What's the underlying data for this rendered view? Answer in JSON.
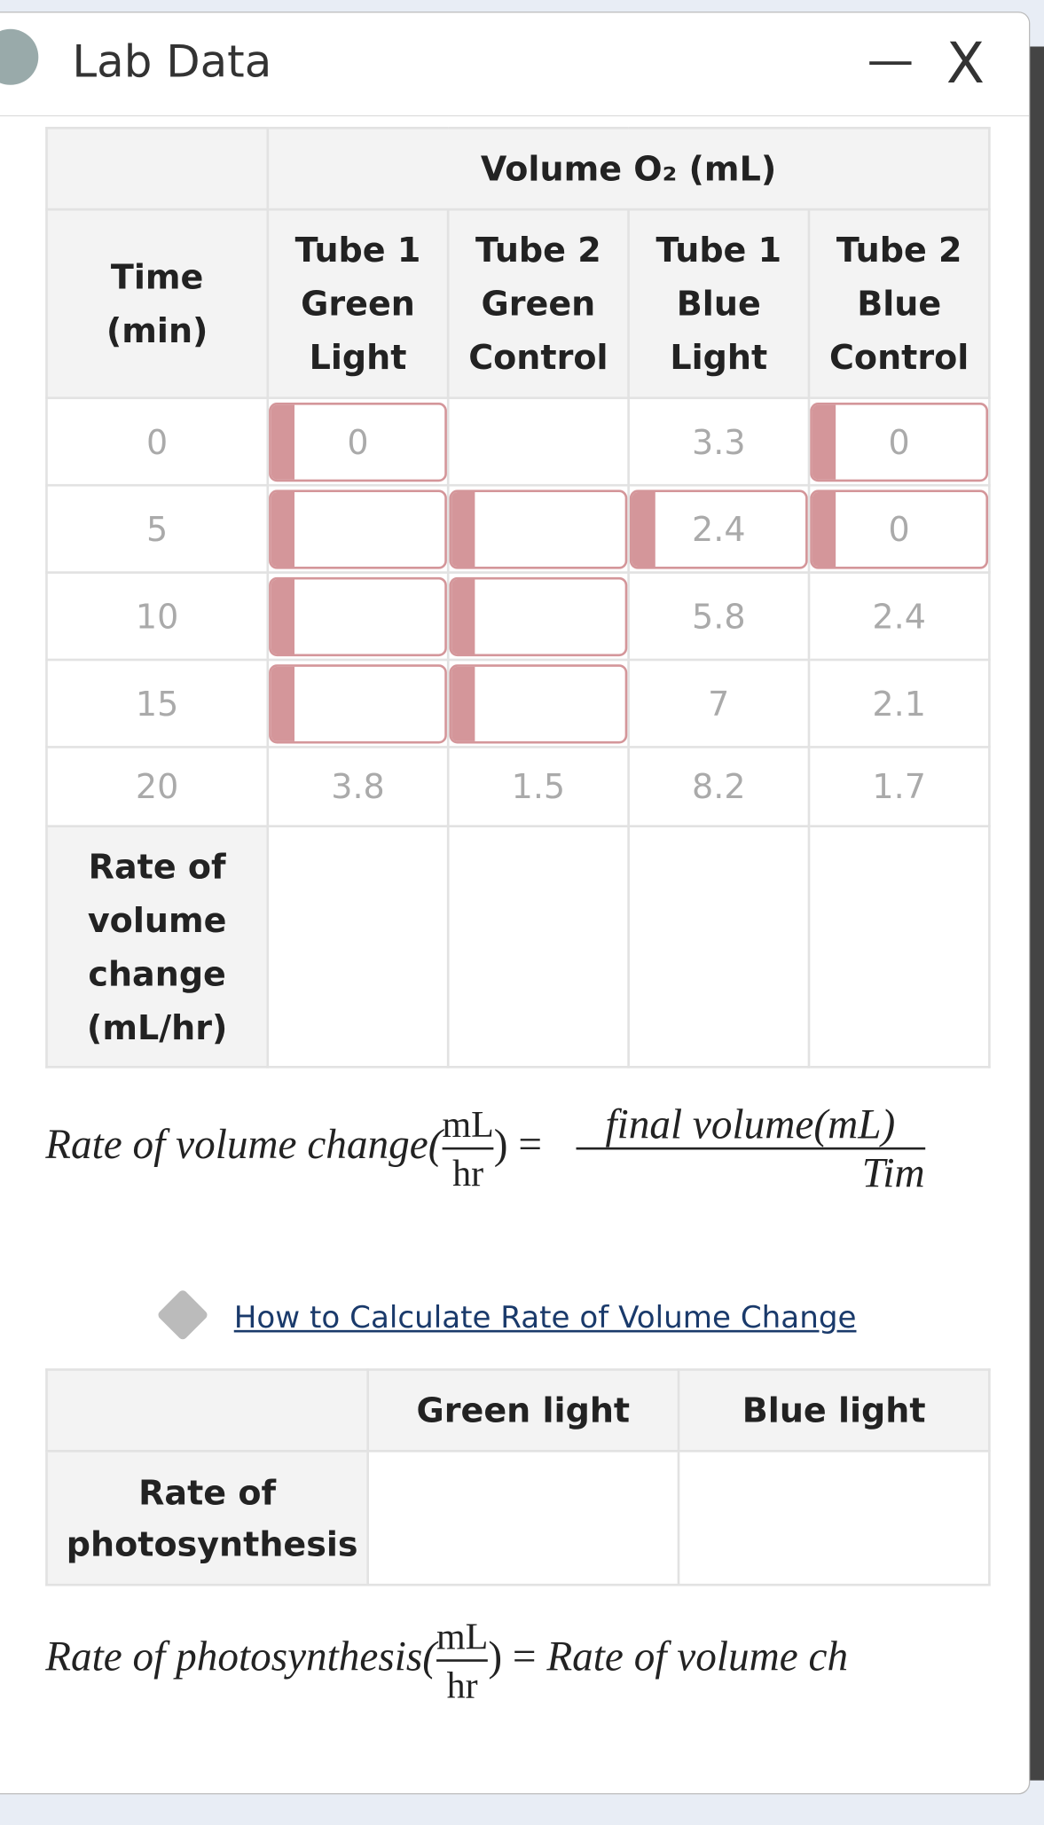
{
  "window": {
    "title": "Lab Data",
    "minimize": "—",
    "close": "X"
  },
  "table1": {
    "group_header": "Volume O₂ (mL)",
    "time_header": "Time (min)",
    "columns": [
      "Tube 1 Green Light",
      "Tube 2 Green Control",
      "Tube 1 Blue Light",
      "Tube 2 Blue Control"
    ],
    "rows": [
      [
        {
          "value": 0
        },
        {
          "value": 0,
          "input": true
        },
        {
          "input": false
        },
        {
          "value": 3.3
        },
        {
          "value": 0,
          "input": true
        }
      ],
      [
        {
          "value": 5
        },
        {
          "input": true
        },
        {
          "input": true
        },
        {
          "value": 2.4,
          "input": true
        },
        {
          "value": 0,
          "input": true
        }
      ],
      [
        {
          "value": 10
        },
        {
          "input": true
        },
        {
          "input": true
        },
        {
          "value": 5.8
        },
        {
          "value": 2.4
        }
      ],
      [
        {
          "value": 15
        },
        {
          "input": true
        },
        {
          "input": true
        },
        {
          "value": 7
        },
        {
          "value": 2.1
        }
      ],
      [
        {
          "value": 20
        },
        {
          "value": 3.8
        },
        {
          "value": 1.5
        },
        {
          "value": 8.2
        },
        {
          "value": 1.7
        }
      ]
    ],
    "rate_row": "Rate of volume change (mL/hr)"
  },
  "formula1": {
    "lhs": "Rate of volume change(",
    "num": "mL",
    "den": "hr",
    "eq": ") =",
    "rnum": "final volume(mL)",
    "rden": "Tim"
  },
  "link": "How to Calculate Rate of Volume Change",
  "table2": {
    "columns": [
      "Green light",
      "Blue light"
    ],
    "row": "Rate of photosynthesis"
  },
  "formula2": {
    "lhs": "Rate of photosynthesis(",
    "num": "mL",
    "den": "hr",
    "eq": ") =",
    "rhs": "Rate of volume ch"
  }
}
